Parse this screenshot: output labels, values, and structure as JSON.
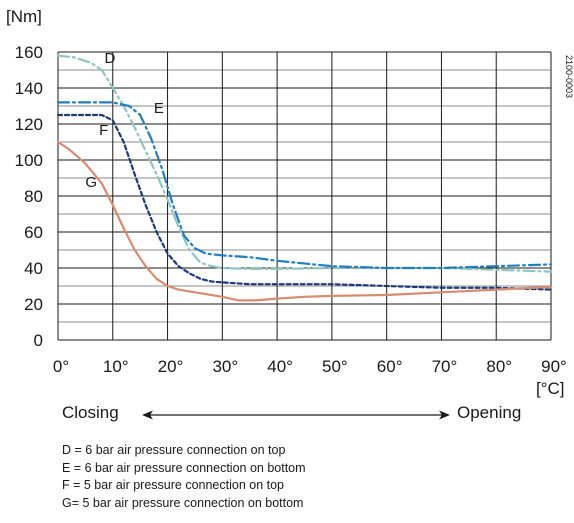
{
  "chart_data": {
    "type": "line",
    "title": "",
    "ylabel": "[Nm]",
    "xlabel": "[°C]",
    "xlim": [
      0,
      90
    ],
    "ylim": [
      0,
      160
    ],
    "x_tick_labels": [
      "0°",
      "10°",
      "20°",
      "30°",
      "40°",
      "50°",
      "60°",
      "70°",
      "80°",
      "90°"
    ],
    "y_tick_labels": [
      "0",
      "20",
      "40",
      "60",
      "80",
      "100",
      "120",
      "140",
      "160"
    ],
    "grid": true,
    "figure_code": "2100-0003",
    "series": [
      {
        "name": "D",
        "color": "#8ec5c0",
        "style": "dash-dot",
        "x": [
          0,
          3,
          6,
          8,
          10,
          12,
          14,
          16,
          18,
          20,
          22,
          24,
          26,
          28,
          30,
          35,
          40,
          50,
          60,
          70,
          80,
          90
        ],
        "y": [
          158,
          157,
          154,
          150,
          140,
          130,
          118,
          105,
          92,
          78,
          63,
          50,
          43,
          41,
          40,
          39.5,
          39.5,
          40,
          40,
          40,
          39,
          38
        ]
      },
      {
        "name": "E",
        "color": "#1f7fc1",
        "style": "dash-dot",
        "x": [
          0,
          5,
          10,
          13,
          15,
          17,
          19,
          21,
          23,
          25,
          27,
          30,
          35,
          40,
          50,
          60,
          70,
          80,
          90
        ],
        "y": [
          132,
          132,
          132,
          130,
          125,
          112,
          95,
          75,
          58,
          51,
          48,
          47,
          46,
          44,
          41,
          40,
          40,
          41,
          42
        ]
      },
      {
        "name": "F",
        "color": "#1c3a7a",
        "style": "dotted",
        "x": [
          0,
          4,
          8,
          10,
          12,
          14,
          16,
          18,
          20,
          22,
          24,
          26,
          28,
          30,
          35,
          40,
          50,
          60,
          70,
          80,
          90
        ],
        "y": [
          125,
          125,
          125,
          122,
          110,
          92,
          75,
          60,
          48,
          41,
          37,
          34,
          32.5,
          32,
          31,
          31,
          31,
          30,
          29,
          29,
          28
        ]
      },
      {
        "name": "G",
        "color": "#d98b70",
        "style": "solid",
        "x": [
          0,
          2,
          5,
          8,
          10,
          12,
          14,
          16,
          18,
          20,
          22,
          24,
          26,
          28,
          30,
          33,
          36,
          40,
          45,
          50,
          60,
          70,
          80,
          90
        ],
        "y": [
          110,
          106,
          98,
          87,
          75,
          62,
          50,
          41,
          34,
          30,
          28,
          27,
          26,
          25,
          24,
          22,
          22,
          23,
          24,
          24.5,
          25,
          26.5,
          28,
          29.5
        ]
      }
    ]
  },
  "direction": {
    "left_label": "Closing",
    "right_label": "Opening"
  },
  "legend_lines": [
    "D = 6 bar air pressure connection on top",
    "E = 6 bar air pressure connection on bottom",
    "F = 5 bar air pressure connection on top",
    "G= 5 bar air pressure connection on bottom"
  ]
}
